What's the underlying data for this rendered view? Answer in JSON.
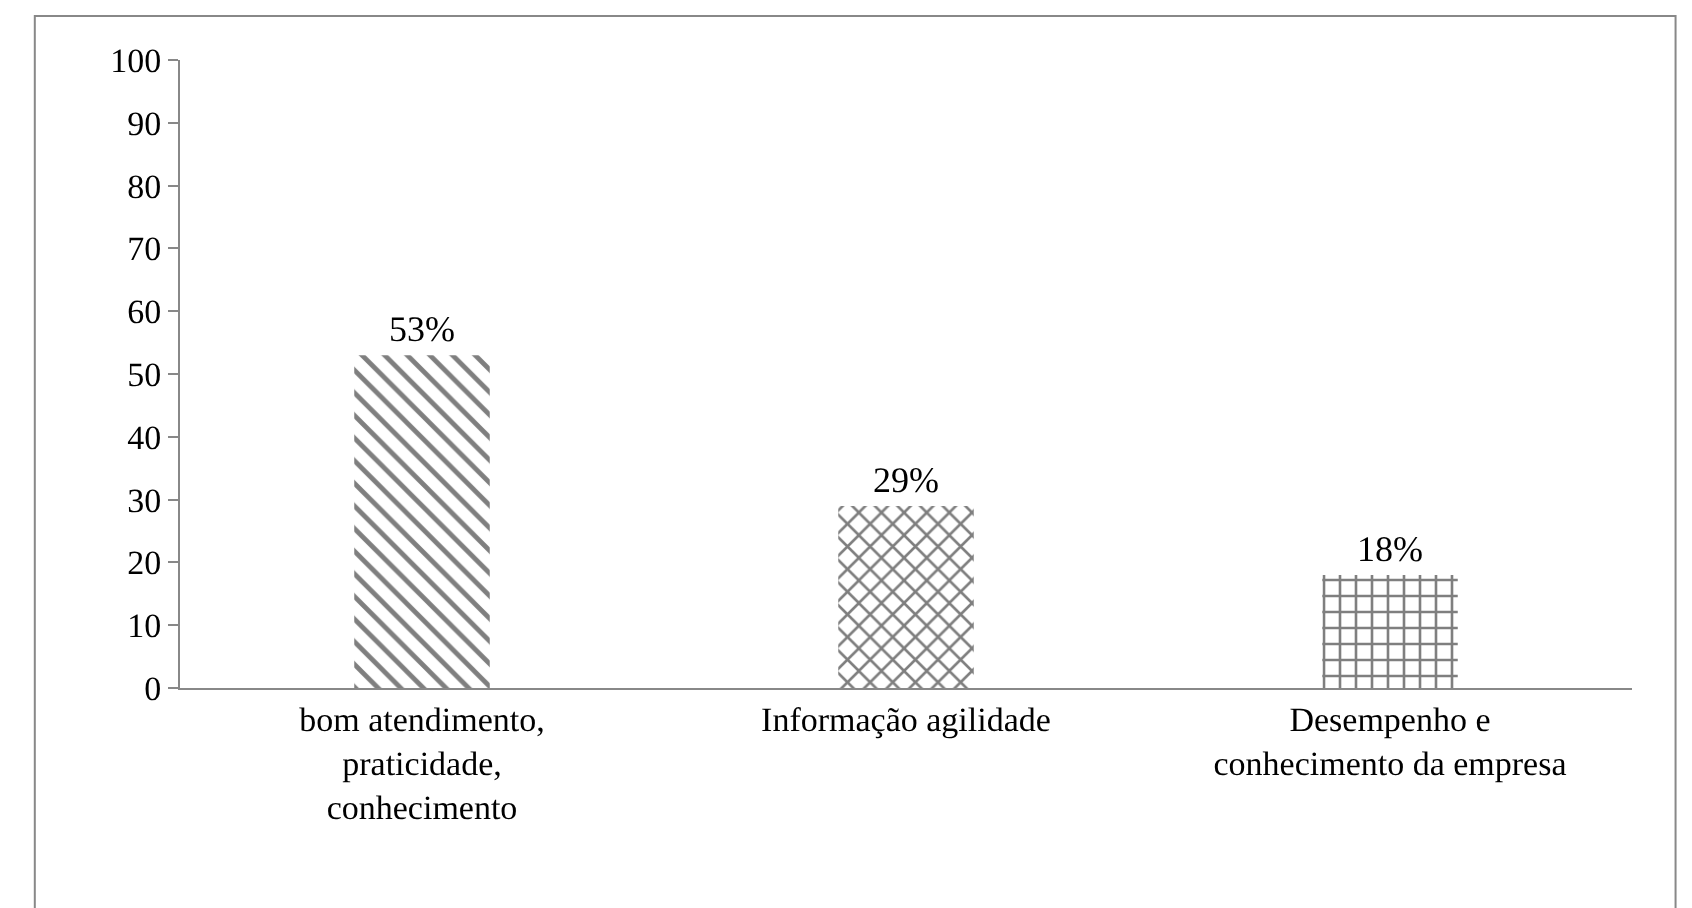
{
  "chart_data": {
    "type": "bar",
    "categories": [
      "bom atendimento, praticidade, conhecimento",
      "Informação agilidade",
      "Desempenho e conhecimento da empresa"
    ],
    "values": [
      53,
      29,
      18
    ],
    "value_labels": [
      "53%",
      "29%",
      "18%"
    ],
    "color": "#000000",
    "ylim": [
      0,
      100
    ],
    "yticks": [
      0,
      10,
      20,
      30,
      40,
      50,
      60,
      70,
      80,
      90,
      100
    ]
  }
}
